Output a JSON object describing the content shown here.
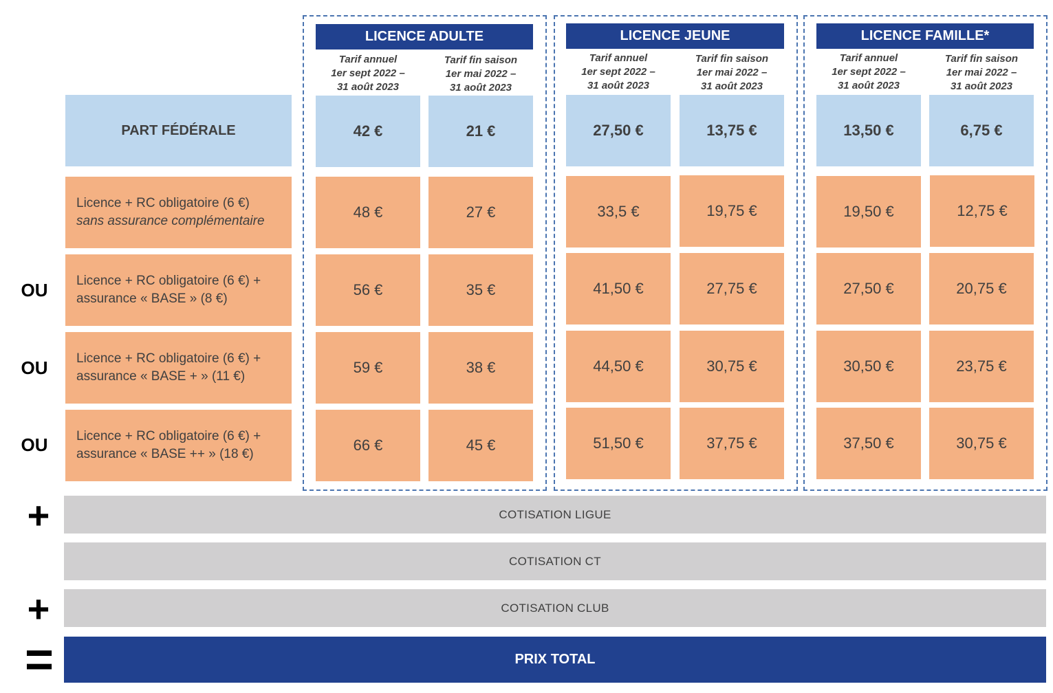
{
  "groups": [
    {
      "title": "LICENCE ADULTE",
      "col1": {
        "l1": "Tarif annuel",
        "l2": "1er sept 2022 –",
        "l3": "31 août 2023"
      },
      "col2": {
        "l1": "Tarif fin saison",
        "l2": "1er mai 2022 –",
        "l3": "31 août 2023"
      },
      "rows": [
        [
          "42 €",
          "21 €"
        ],
        [
          "48 €",
          "27 €"
        ],
        [
          "56 €",
          "35 €"
        ],
        [
          "59 €",
          "38 €"
        ],
        [
          "66 €",
          "45 €"
        ]
      ]
    },
    {
      "title": "LICENCE JEUNE",
      "col1": {
        "l1": "Tarif annuel",
        "l2": "1er sept 2022 –",
        "l3": "31 août 2023"
      },
      "col2": {
        "l1": "Tarif fin saison",
        "l2": "1er mai 2022 –",
        "l3": "31 août 2023"
      },
      "rows": [
        [
          "27,50 €",
          "13,75 €"
        ],
        [
          "33,5 €",
          "19,75 €"
        ],
        [
          "41,50 €",
          "27,75 €"
        ],
        [
          "44,50 €",
          "30,75 €"
        ],
        [
          "51,50 €",
          "37,75 €"
        ]
      ]
    },
    {
      "title": "LICENCE FAMILLE*",
      "col1": {
        "l1": "Tarif annuel",
        "l2": "1er sept 2022 –",
        "l3": "31 août 2023"
      },
      "col2": {
        "l1": "Tarif fin saison",
        "l2": "1er mai 2022 –",
        "l3": "31 août 2023"
      },
      "rows": [
        [
          "13,50 €",
          "6,75 €"
        ],
        [
          "19,50 €",
          "12,75 €"
        ],
        [
          "27,50 €",
          "20,75 €"
        ],
        [
          "30,50 €",
          "23,75 €"
        ],
        [
          "37,50 €",
          "30,75 €"
        ]
      ]
    }
  ],
  "row_labels": {
    "fed": "PART FÉDÉRALE",
    "r1": {
      "l1": "Licence + RC obligatoire (6 €)",
      "l2": "sans assurance complémentaire"
    },
    "r2": {
      "l1": "Licence + RC obligatoire (6 €) +",
      "l2": "assurance « BASE » (8 €)"
    },
    "r3": {
      "l1": "Licence + RC obligatoire (6 €) +",
      "l2": "assurance « BASE + » (11 €)"
    },
    "r4": {
      "l1": "Licence + RC obligatoire (6 €) +",
      "l2": "assurance « BASE ++ » (18 €)"
    }
  },
  "ou_label": "OU",
  "plus_symbol": "+",
  "equals_symbol": "=",
  "bars": {
    "ligue": "COTISATION LIGUE",
    "ct": "COTISATION CT",
    "club": "COTISATION CLUB",
    "total": "PRIX TOTAL"
  }
}
